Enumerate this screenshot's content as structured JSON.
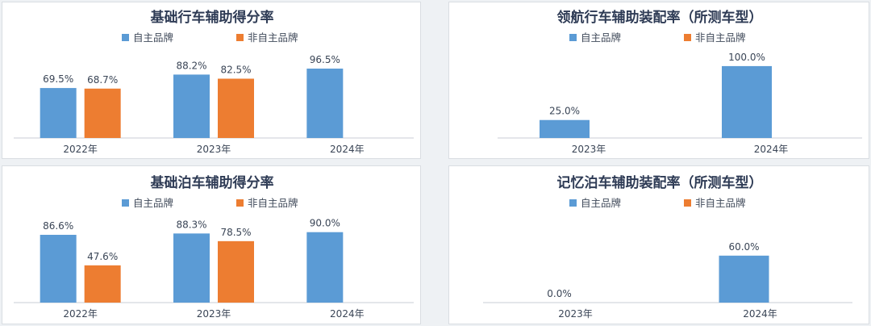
{
  "chart_data": [
    {
      "type": "bar",
      "title": "基础行车辅助得分率",
      "categories": [
        "2022年",
        "2023年",
        "2024年"
      ],
      "series": [
        {
          "name": "自主品牌",
          "values": [
            69.5,
            88.2,
            96.5
          ],
          "labels": [
            "69.5%",
            "88.2%",
            "96.5%"
          ],
          "color": "#5b9bd5"
        },
        {
          "name": "非自主品牌",
          "values": [
            68.7,
            82.5,
            null
          ],
          "labels": [
            "68.7%",
            "82.5%",
            ""
          ],
          "color": "#ed7d31"
        }
      ],
      "ylim": [
        0,
        110
      ],
      "legend": "top-center",
      "grid": false
    },
    {
      "type": "bar",
      "title": "领航行车辅助装配率（所测车型）",
      "categories": [
        "2023年",
        "2024年"
      ],
      "series": [
        {
          "name": "自主品牌",
          "values": [
            25.0,
            100.0
          ],
          "labels": [
            "25.0%",
            "100.0%"
          ],
          "color": "#5b9bd5"
        },
        {
          "name": "非自主品牌",
          "values": [
            null,
            null
          ],
          "labels": [
            "",
            ""
          ],
          "color": "#ed7d31"
        }
      ],
      "ylim": [
        0,
        110
      ],
      "legend": "top-center",
      "grid": false
    },
    {
      "type": "bar",
      "title": "基础泊车辅助得分率",
      "categories": [
        "2022年",
        "2023年",
        "2024年"
      ],
      "series": [
        {
          "name": "自主品牌",
          "values": [
            86.6,
            88.3,
            90.0
          ],
          "labels": [
            "86.6%",
            "88.3%",
            "90.0%"
          ],
          "color": "#5b9bd5"
        },
        {
          "name": "非自主品牌",
          "values": [
            47.6,
            78.5,
            null
          ],
          "labels": [
            "47.6%",
            "78.5%",
            ""
          ],
          "color": "#ed7d31"
        }
      ],
      "ylim": [
        0,
        100
      ],
      "legend": "top-center",
      "grid": false
    },
    {
      "type": "bar",
      "title": "记忆泊车辅助装配率（所测车型）",
      "categories": [
        "2023年",
        "2024年"
      ],
      "series": [
        {
          "name": "自主品牌",
          "values": [
            0.0,
            60.0
          ],
          "labels": [
            "0.0%",
            "60.0%"
          ],
          "color": "#5b9bd5"
        },
        {
          "name": "非自主品牌",
          "values": [
            null,
            null
          ],
          "labels": [
            "",
            ""
          ],
          "color": "#ed7d31"
        }
      ],
      "ylim": [
        0,
        100
      ],
      "legend": "top-center",
      "grid": false
    }
  ]
}
